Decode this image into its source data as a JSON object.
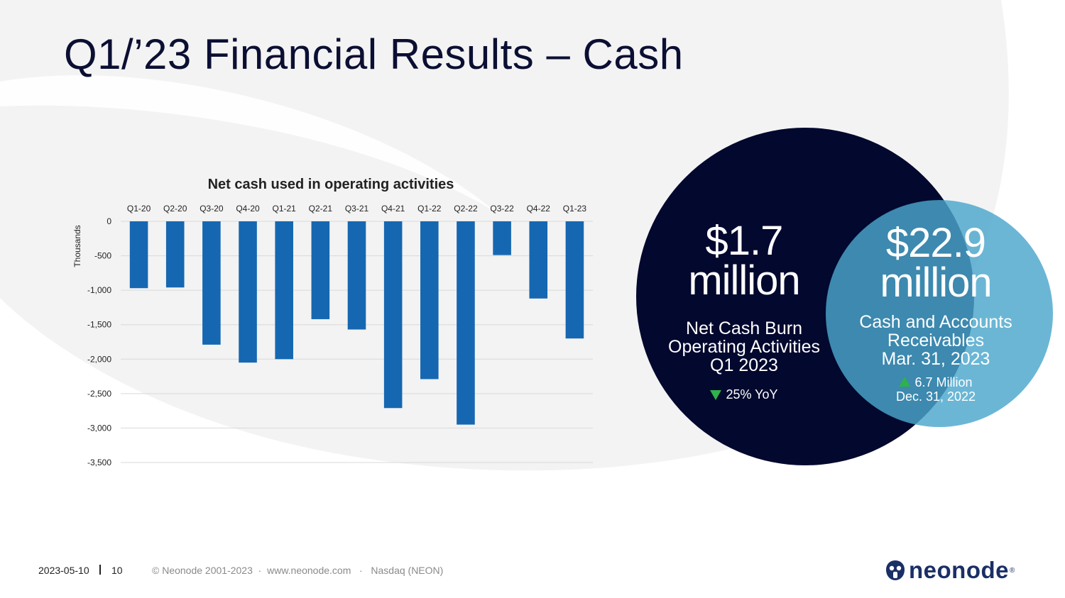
{
  "slide": {
    "title": "Q1/’23 Financial Results – Cash"
  },
  "chart_data": {
    "type": "bar",
    "title": "Net cash used in operating activities",
    "ylabel": "Thousands",
    "xlabel": "",
    "categories": [
      "Q1-20",
      "Q2-20",
      "Q3-20",
      "Q4-20",
      "Q1-21",
      "Q2-21",
      "Q3-21",
      "Q4-21",
      "Q1-22",
      "Q2-22",
      "Q3-22",
      "Q4-22",
      "Q1-23"
    ],
    "values": [
      -970,
      -960,
      -1790,
      -2050,
      -2000,
      -1420,
      -1570,
      -2710,
      -2290,
      -2950,
      -490,
      -1120,
      -1700
    ],
    "ylim": [
      -3500,
      0
    ],
    "yticks": [
      0,
      -500,
      -1000,
      -1500,
      -2000,
      -2500,
      -3000,
      -3500
    ],
    "ytick_labels": [
      "0",
      "-500",
      "-1,000",
      "-1,500",
      "-2,000",
      "-2,500",
      "-3,000",
      "-3,500"
    ],
    "category_axis_position": "top",
    "grid": true,
    "bar_color": "#1667b1"
  },
  "stats": {
    "burn": {
      "value_line1": "$1.7",
      "value_line2": "million",
      "desc_line1": "Net Cash Burn",
      "desc_line2": "Operating Activities",
      "desc_line3": "Q1 2023",
      "change": "25% YoY",
      "circle_color": "#03082e"
    },
    "cash": {
      "value_line1": "$22.9",
      "value_line2": "million",
      "desc_line1": "Cash and Accounts",
      "desc_line2": "Receivables",
      "desc_line3": "Mar. 31, 2023",
      "change_line1": "6.7 Million",
      "change_line2": "Dec. 31, 2022",
      "circle_color": "#4aa6cc"
    }
  },
  "footer": {
    "date": "2023-05-10",
    "page": "10",
    "copyright": "© Neonode 2001-2023  ·  www.neonode.com   ·   Nasdaq (NEON)"
  },
  "logo": {
    "text": "neonode",
    "reg": "®"
  },
  "colors": {
    "title": "#0b0f33",
    "accent_green": "#2fb14b",
    "logo": "#1a2f66"
  }
}
